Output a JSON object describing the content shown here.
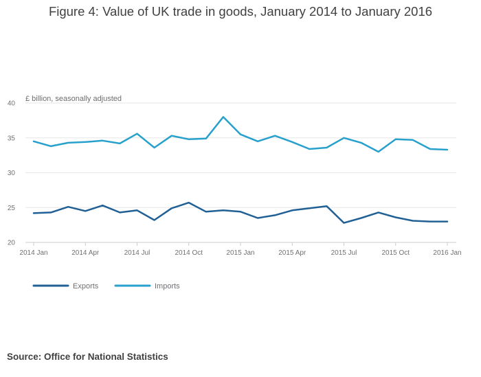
{
  "title": "Figure 4: Value of UK trade in goods, January 2014 to January 2016",
  "source": "Source: Office for National Statistics",
  "colors": {
    "exports": "#206095",
    "imports": "#27a0cc",
    "grid": "#e6e6e6",
    "axis": "#cccccc"
  },
  "chart_data": {
    "type": "line",
    "title": "Figure 4: Value of UK trade in goods, January 2014 to January 2016",
    "ylabel": "£ billion, seasonally adjusted",
    "xlabel": "",
    "ylim": [
      20,
      40
    ],
    "yticks": [
      20,
      25,
      30,
      35,
      40
    ],
    "grid": true,
    "legend": "bottom-left",
    "x": [
      "2014 Jan",
      "2014 Feb",
      "2014 Mar",
      "2014 Apr",
      "2014 May",
      "2014 Jun",
      "2014 Jul",
      "2014 Aug",
      "2014 Sep",
      "2014 Oct",
      "2014 Nov",
      "2014 Dec",
      "2015 Jan",
      "2015 Feb",
      "2015 Mar",
      "2015 Apr",
      "2015 May",
      "2015 Jun",
      "2015 Jul",
      "2015 Aug",
      "2015 Sep",
      "2015 Oct",
      "2015 Nov",
      "2015 Dec",
      "2016 Jan"
    ],
    "xticks": [
      "2014 Jan",
      "2014 Apr",
      "2014 Jul",
      "2014 Oct",
      "2015 Jan",
      "2015 Apr",
      "2015 Jul",
      "2015 Oct",
      "2016 Jan"
    ],
    "series": [
      {
        "name": "Exports",
        "values": [
          24.2,
          24.3,
          25.1,
          24.5,
          25.3,
          24.3,
          24.6,
          23.2,
          24.9,
          25.7,
          24.4,
          24.6,
          24.4,
          23.5,
          23.9,
          24.6,
          24.9,
          25.2,
          22.8,
          23.5,
          24.3,
          23.6,
          23.1,
          23.0,
          23.0
        ]
      },
      {
        "name": "Imports",
        "values": [
          34.5,
          33.8,
          34.3,
          34.4,
          34.6,
          34.2,
          35.6,
          33.6,
          35.3,
          34.8,
          34.9,
          38.0,
          35.5,
          34.5,
          35.3,
          34.4,
          33.4,
          33.6,
          35.0,
          34.3,
          33.0,
          34.8,
          34.7,
          33.4,
          33.3
        ]
      }
    ]
  }
}
